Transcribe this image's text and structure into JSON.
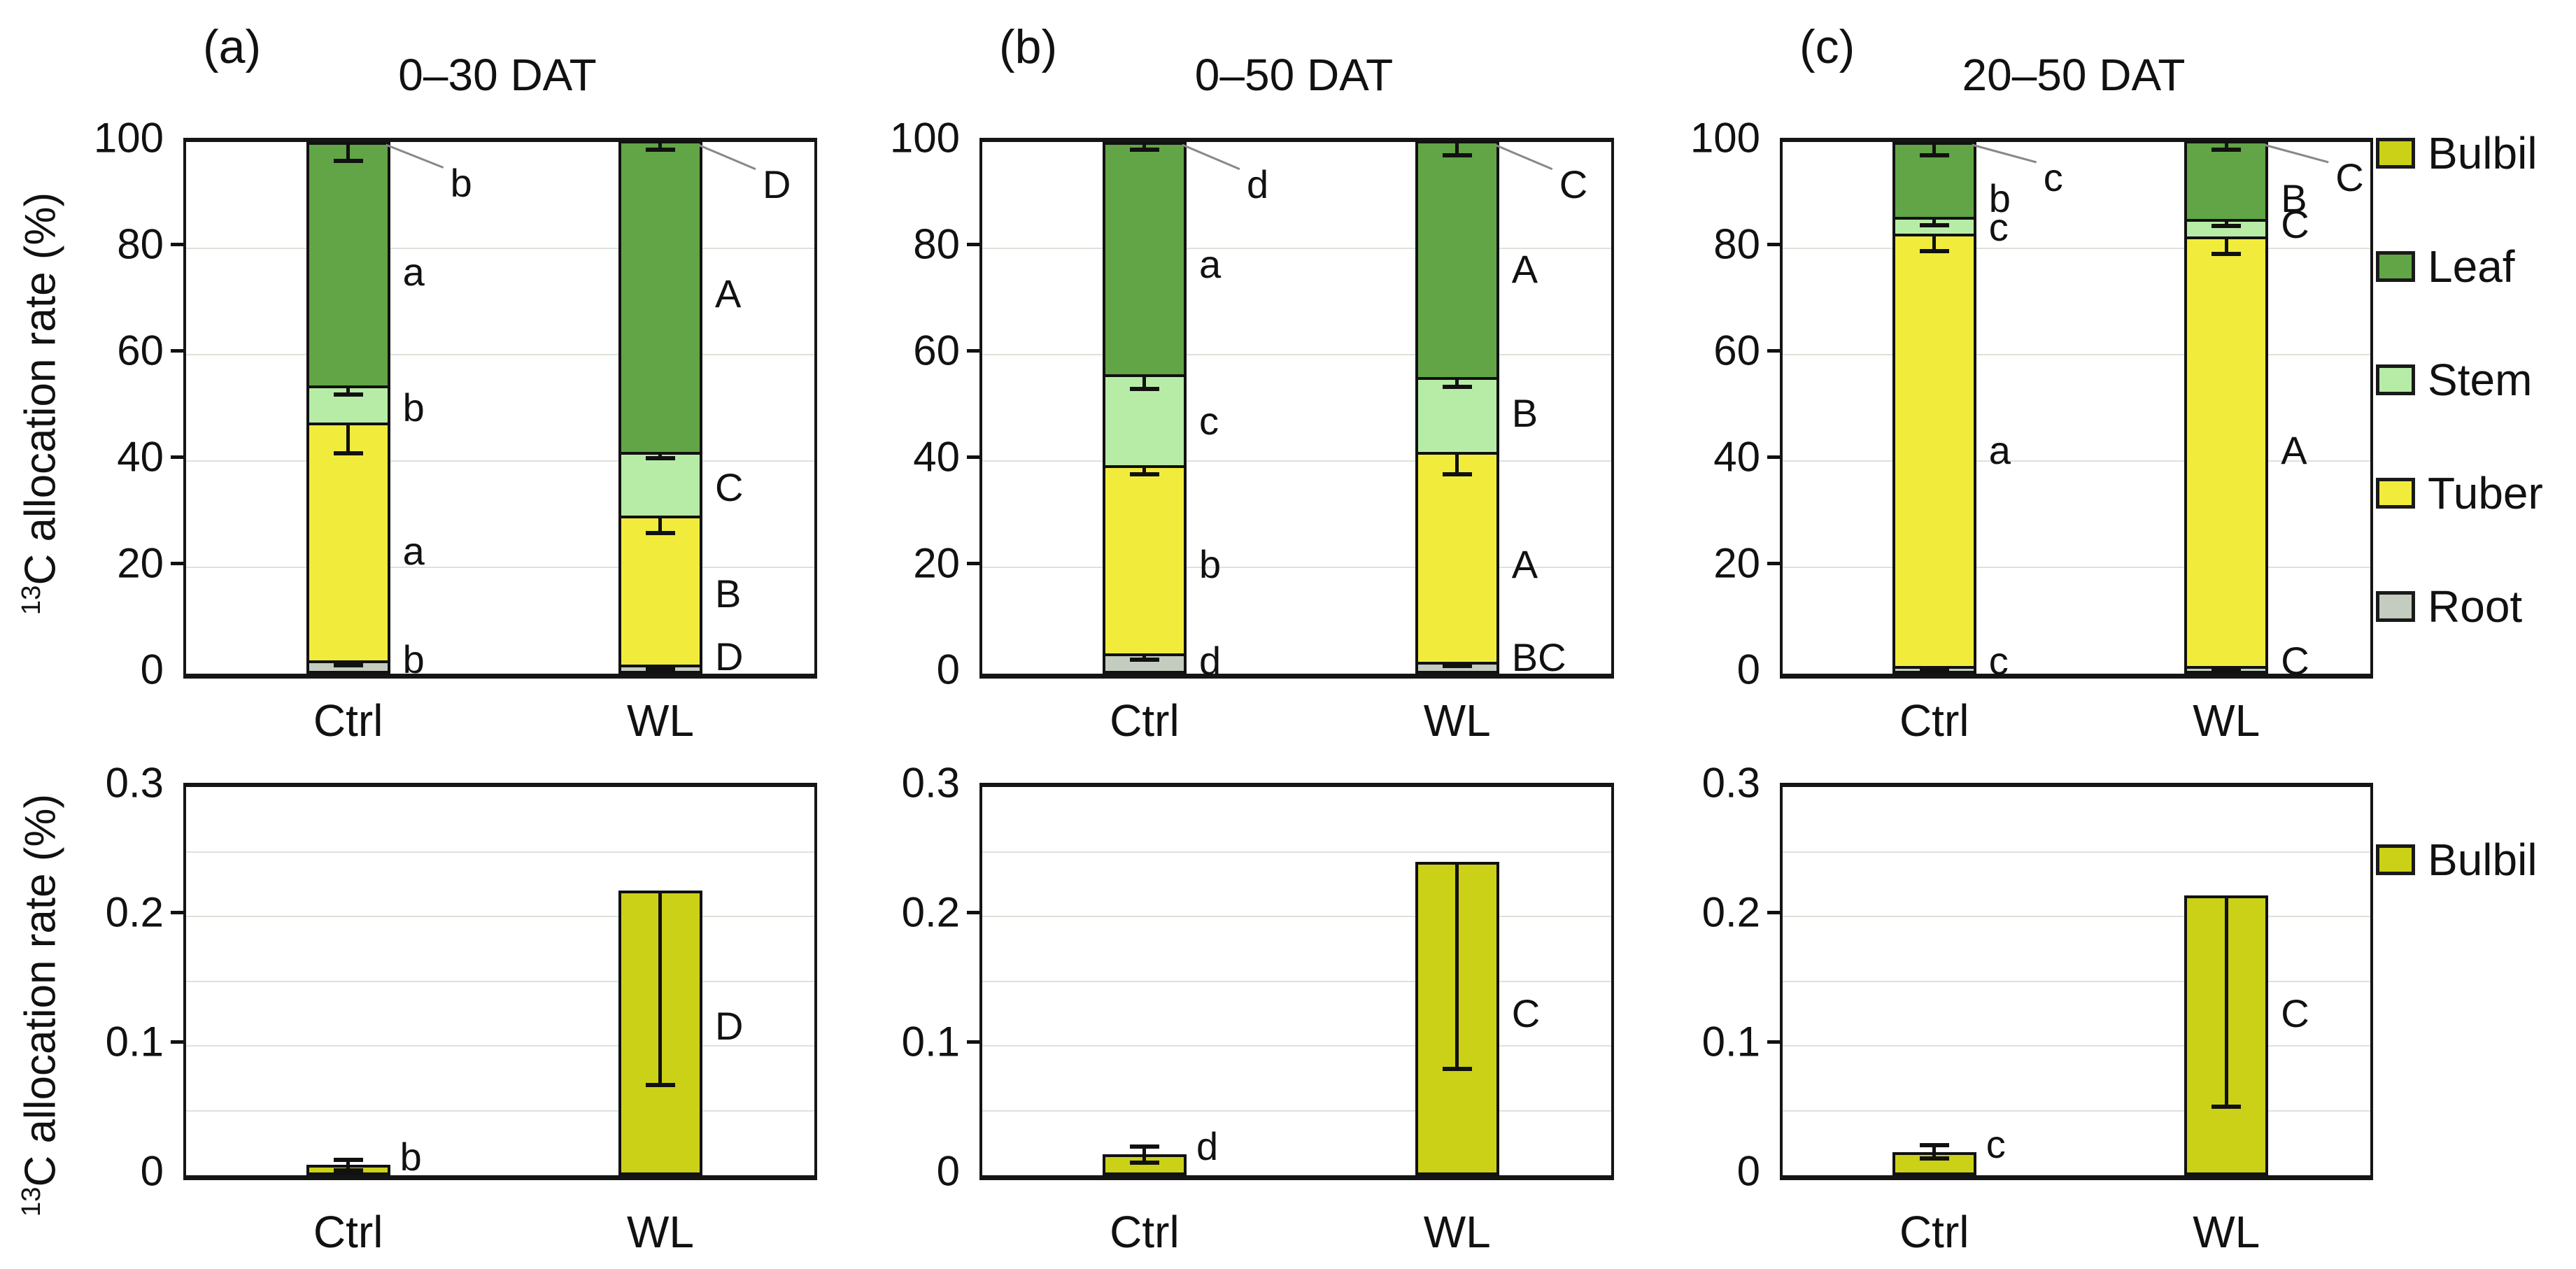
{
  "y_axis": {
    "sup": "13",
    "main": "C allocation rate (%)"
  },
  "colors": {
    "bulbil": "#cbd117",
    "leaf": "#61a546",
    "stem": "#b7eca6",
    "tuber": "#f1ec3c",
    "root": "#c4ccc0",
    "grid": "#dbe3d9",
    "axis": "#151515",
    "error": "#111111",
    "leader": "#888888"
  },
  "legend_top": {
    "items": [
      {
        "label": "Bulbil",
        "color_key": "bulbil"
      },
      {
        "label": "Leaf",
        "color_key": "leaf"
      },
      {
        "label": "Stem",
        "color_key": "stem"
      },
      {
        "label": "Tuber",
        "color_key": "tuber"
      },
      {
        "label": "Root",
        "color_key": "root"
      }
    ]
  },
  "legend_bottom": {
    "items": [
      {
        "label": "Bulbil",
        "color_key": "bulbil"
      }
    ]
  },
  "chart_data": [
    {
      "type": "bar",
      "subtype": "stacked",
      "panel_label": "(a)",
      "title": "0–30 DAT",
      "ylabel": "13C allocation rate (%)",
      "ylim": [
        0,
        100
      ],
      "yticks": [
        {
          "v": 0,
          "label": "0"
        },
        {
          "v": 20,
          "label": "20"
        },
        {
          "v": 40,
          "label": "40"
        },
        {
          "v": 60,
          "label": "60"
        },
        {
          "v": 80,
          "label": "80"
        },
        {
          "v": 100,
          "label": "100"
        }
      ],
      "tick_marks": [
        20,
        40,
        60,
        80
      ],
      "gridlines": [
        20,
        40,
        60,
        80
      ],
      "stack_order": [
        "root",
        "tuber",
        "stem",
        "leaf",
        "bulbil"
      ],
      "categories": [
        "Ctrl",
        "WL"
      ],
      "bars": [
        {
          "category": "Ctrl",
          "segments": {
            "root": 2.3,
            "tuber": 44.7,
            "stem": 7.0,
            "leaf": 46.0,
            "bulbil": 0.008
          },
          "errors": [
            {
              "at": 100,
              "minus": 3.5
            },
            {
              "at": 54,
              "minus": 1.5
            },
            {
              "at": 47,
              "minus": 5.5
            },
            {
              "at": 2.3,
              "minus": 0.7
            }
          ],
          "labels": [
            {
              "text": "b",
              "y": 92.3,
              "dx": 86,
              "leader": true
            },
            {
              "text": "a",
              "y": 75.5
            },
            {
              "text": "b",
              "y": 50
            },
            {
              "text": "a",
              "y": 23
            },
            {
              "text": "b",
              "y": 2.6
            }
          ]
        },
        {
          "category": "WL",
          "segments": {
            "root": 1.5,
            "tuber": 28.0,
            "stem": 12.0,
            "leaf": 58.5,
            "bulbil": 0.22
          },
          "errors": [
            {
              "at": 100,
              "minus": 1.5
            },
            {
              "at": 41.5,
              "minus": 1.0
            },
            {
              "at": 29.5,
              "minus": 3.0
            },
            {
              "at": 1.5,
              "minus": 0.6
            }
          ],
          "labels": [
            {
              "text": "D",
              "y": 92.0,
              "dx": 86,
              "leader": true
            },
            {
              "text": "A",
              "y": 71.5
            },
            {
              "text": "C",
              "y": 35
            },
            {
              "text": "B",
              "y": 15
            },
            {
              "text": "D",
              "y": 3.2
            }
          ]
        }
      ]
    },
    {
      "type": "bar",
      "subtype": "stacked",
      "panel_label": "(b)",
      "title": "0–50 DAT",
      "ylabel": "13C allocation rate (%)",
      "ylim": [
        0,
        100
      ],
      "yticks": [
        {
          "v": 0,
          "label": "0"
        },
        {
          "v": 20,
          "label": "20"
        },
        {
          "v": 40,
          "label": "40"
        },
        {
          "v": 60,
          "label": "60"
        },
        {
          "v": 80,
          "label": "80"
        },
        {
          "v": 100,
          "label": "100"
        }
      ],
      "tick_marks": [
        20,
        40,
        60,
        80
      ],
      "gridlines": [
        20,
        40,
        60,
        80
      ],
      "stack_order": [
        "root",
        "tuber",
        "stem",
        "leaf",
        "bulbil"
      ],
      "categories": [
        "Ctrl",
        "WL"
      ],
      "bars": [
        {
          "category": "Ctrl",
          "segments": {
            "root": 3.5,
            "tuber": 35.5,
            "stem": 17.0,
            "leaf": 44.0,
            "bulbil": 0.016
          },
          "errors": [
            {
              "at": 100,
              "minus": 1.5
            },
            {
              "at": 56,
              "minus": 2.5
            },
            {
              "at": 39,
              "minus": 1.5
            },
            {
              "at": 3.5,
              "minus": 0.9
            }
          ],
          "labels": [
            {
              "text": "d",
              "y": 92.0,
              "dx": 86,
              "leader": true
            },
            {
              "text": "a",
              "y": 77
            },
            {
              "text": "c",
              "y": 47.5
            },
            {
              "text": "b",
              "y": 20.5
            },
            {
              "text": "d",
              "y": 2.4
            }
          ]
        },
        {
          "category": "WL",
          "segments": {
            "root": 2.0,
            "tuber": 39.5,
            "stem": 14.0,
            "leaf": 44.5,
            "bulbil": 0.242
          },
          "errors": [
            {
              "at": 100,
              "minus": 2.5
            },
            {
              "at": 55.5,
              "minus": 1.5
            },
            {
              "at": 41.5,
              "minus": 4.0
            },
            {
              "at": 2.0,
              "minus": 0.6
            }
          ],
          "labels": [
            {
              "text": "C",
              "y": 92.0,
              "dx": 86,
              "leader": true
            },
            {
              "text": "A",
              "y": 76
            },
            {
              "text": "B",
              "y": 49
            },
            {
              "text": "A",
              "y": 20.5
            },
            {
              "text": "BC",
              "y": 3.0
            }
          ]
        }
      ]
    },
    {
      "type": "bar",
      "subtype": "stacked",
      "panel_label": "(c)",
      "title": "20–50 DAT",
      "ylabel": "13C allocation rate (%)",
      "ylim": [
        0,
        100
      ],
      "yticks": [
        {
          "v": 0,
          "label": "0"
        },
        {
          "v": 20,
          "label": "20"
        },
        {
          "v": 40,
          "label": "40"
        },
        {
          "v": 60,
          "label": "60"
        },
        {
          "v": 80,
          "label": "80"
        },
        {
          "v": 100,
          "label": "100"
        }
      ],
      "tick_marks": [
        20,
        40,
        60,
        80
      ],
      "gridlines": [
        20,
        40,
        60,
        80
      ],
      "stack_order": [
        "root",
        "tuber",
        "stem",
        "leaf",
        "bulbil"
      ],
      "categories": [
        "Ctrl",
        "WL"
      ],
      "bars": [
        {
          "category": "Ctrl",
          "segments": {
            "root": 1.2,
            "tuber": 81.3,
            "stem": 3.2,
            "leaf": 14.3,
            "bulbil": 0.018
          },
          "errors": [
            {
              "at": 100,
              "minus": 2.5
            },
            {
              "at": 85.7,
              "minus": 1.3
            },
            {
              "at": 82.5,
              "minus": 3.0
            },
            {
              "at": 1.2,
              "minus": 0.5
            }
          ],
          "labels": [
            {
              "text": "c",
              "y": 93.3,
              "dx": 96,
              "leader": true
            },
            {
              "text": "b",
              "y": 89.3
            },
            {
              "text": "c",
              "y": 84.0
            },
            {
              "text": "a",
              "y": 42
            },
            {
              "text": "c",
              "y": 2.4
            }
          ]
        },
        {
          "category": "WL",
          "segments": {
            "root": 1.2,
            "tuber": 80.8,
            "stem": 3.2,
            "leaf": 14.8,
            "bulbil": 0.216
          },
          "errors": [
            {
              "at": 100,
              "minus": 1.5
            },
            {
              "at": 85.2,
              "minus": 1.0
            },
            {
              "at": 82.0,
              "minus": 3.0
            },
            {
              "at": 1.2,
              "minus": 0.5
            }
          ],
          "labels": [
            {
              "text": "C",
              "y": 93.3,
              "dx": 96,
              "leader": true
            },
            {
              "text": "B",
              "y": 89.3
            },
            {
              "text": "C",
              "y": 84.5
            },
            {
              "text": "A",
              "y": 42
            },
            {
              "text": "C",
              "y": 2.4
            }
          ]
        }
      ]
    },
    {
      "type": "bar",
      "subtype": "single",
      "series": "Bulbil",
      "ylabel": "13C allocation rate (%)",
      "ylim": [
        0,
        0.3
      ],
      "yticks": [
        {
          "v": 0,
          "label": "0"
        },
        {
          "v": 0.1,
          "label": "0.1"
        },
        {
          "v": 0.2,
          "label": "0.2"
        },
        {
          "v": 0.3,
          "label": "0.3"
        }
      ],
      "tick_marks": [
        0.1,
        0.2
      ],
      "gridlines": [
        0.05,
        0.1,
        0.15,
        0.2,
        0.25
      ],
      "categories": [
        "Ctrl",
        "WL"
      ],
      "bars": [
        {
          "category": "Ctrl",
          "value": 0.008,
          "error_plus": 0.004,
          "error_minus": 0.004,
          "label": {
            "text": "b",
            "y": 0.014,
            "dx": 14
          }
        },
        {
          "category": "WL",
          "value": 0.22,
          "error_minus": 0.15,
          "label": {
            "text": "D",
            "y": 0.115,
            "dx": 18
          }
        }
      ]
    },
    {
      "type": "bar",
      "subtype": "single",
      "series": "Bulbil",
      "ylabel": "13C allocation rate (%)",
      "ylim": [
        0,
        0.3
      ],
      "yticks": [
        {
          "v": 0,
          "label": "0"
        },
        {
          "v": 0.1,
          "label": "0.1"
        },
        {
          "v": 0.2,
          "label": "0.2"
        },
        {
          "v": 0.3,
          "label": "0.3"
        }
      ],
      "tick_marks": [
        0.1,
        0.2
      ],
      "gridlines": [
        0.05,
        0.1,
        0.15,
        0.2,
        0.25
      ],
      "categories": [
        "Ctrl",
        "WL"
      ],
      "bars": [
        {
          "category": "Ctrl",
          "value": 0.016,
          "error_plus": 0.006,
          "error_minus": 0.006,
          "label": {
            "text": "d",
            "y": 0.022,
            "dx": 14
          }
        },
        {
          "category": "WL",
          "value": 0.242,
          "error_minus": 0.16,
          "label": {
            "text": "C",
            "y": 0.125,
            "dx": 18
          }
        }
      ]
    },
    {
      "type": "bar",
      "subtype": "single",
      "series": "Bulbil",
      "ylabel": "13C allocation rate (%)",
      "ylim": [
        0,
        0.3
      ],
      "yticks": [
        {
          "v": 0,
          "label": "0"
        },
        {
          "v": 0.1,
          "label": "0.1"
        },
        {
          "v": 0.2,
          "label": "0.2"
        },
        {
          "v": 0.3,
          "label": "0.3"
        }
      ],
      "tick_marks": [
        0.1,
        0.2
      ],
      "gridlines": [
        0.05,
        0.1,
        0.15,
        0.2,
        0.25
      ],
      "categories": [
        "Ctrl",
        "WL"
      ],
      "bars": [
        {
          "category": "Ctrl",
          "value": 0.018,
          "error_plus": 0.005,
          "error_minus": 0.005,
          "label": {
            "text": "c",
            "y": 0.024,
            "dx": 14
          }
        },
        {
          "category": "WL",
          "value": 0.216,
          "error_minus": 0.163,
          "label": {
            "text": "C",
            "y": 0.125,
            "dx": 18
          }
        }
      ]
    }
  ]
}
